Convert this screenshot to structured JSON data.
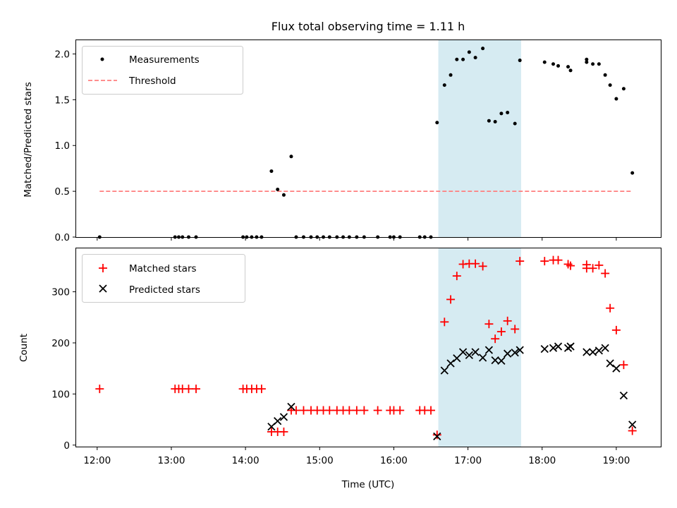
{
  "chart_data": [
    {
      "type": "scatter",
      "title": "Flux total observing time = 1.11 h",
      "xlabel": "",
      "ylabel": "Matched/Predicted stars",
      "xlim": [
        "11:43",
        "19:36"
      ],
      "ylim": [
        0,
        2.15
      ],
      "yticks": [
        "0.0",
        "0.5",
        "1.0",
        "1.5",
        "2.0"
      ],
      "xticks": [
        "12:00",
        "13:00",
        "14:00",
        "15:00",
        "16:00",
        "17:00",
        "18:00",
        "19:00"
      ],
      "xtick_labels_shown": false,
      "shaded_region": {
        "x": [
          "16:36",
          "17:43"
        ],
        "color": "#add8e6"
      },
      "legend": {
        "location": "upper-left",
        "entries": [
          "Measurements",
          "Threshold"
        ]
      },
      "grid": false,
      "series": [
        {
          "name": "Measurements",
          "color": "#000000",
          "marker": "dot",
          "points": [
            [
              "12:02",
              0
            ],
            [
              "13:03",
              0
            ],
            [
              "13:06",
              0
            ],
            [
              "13:09",
              0
            ],
            [
              "13:14",
              0
            ],
            [
              "13:20",
              0
            ],
            [
              "13:58",
              0
            ],
            [
              "14:01",
              0
            ],
            [
              "14:05",
              0
            ],
            [
              "14:09",
              0
            ],
            [
              "14:13",
              0
            ],
            [
              "14:21",
              0.72
            ],
            [
              "14:26",
              0.52
            ],
            [
              "14:31",
              0.46
            ],
            [
              "14:37",
              0.88
            ],
            [
              "14:41",
              0
            ],
            [
              "14:47",
              0
            ],
            [
              "14:53",
              0
            ],
            [
              "14:58",
              0
            ],
            [
              "15:03",
              0
            ],
            [
              "15:08",
              0
            ],
            [
              "15:14",
              0
            ],
            [
              "15:19",
              0
            ],
            [
              "15:24",
              0
            ],
            [
              "15:30",
              0
            ],
            [
              "15:36",
              0
            ],
            [
              "15:47",
              0
            ],
            [
              "15:57",
              0
            ],
            [
              "16:00",
              0
            ],
            [
              "16:05",
              0
            ],
            [
              "16:21",
              0
            ],
            [
              "16:25",
              0
            ],
            [
              "16:30",
              0
            ],
            [
              "16:35",
              1.25
            ],
            [
              "16:41",
              1.66
            ],
            [
              "16:46",
              1.77
            ],
            [
              "16:51",
              1.94
            ],
            [
              "16:56",
              1.94
            ],
            [
              "17:01",
              2.02
            ],
            [
              "17:06",
              1.96
            ],
            [
              "17:12",
              2.06
            ],
            [
              "17:17",
              1.27
            ],
            [
              "17:22",
              1.26
            ],
            [
              "17:27",
              1.35
            ],
            [
              "17:32",
              1.36
            ],
            [
              "17:38",
              1.24
            ],
            [
              "17:42",
              1.93
            ],
            [
              "18:02",
              1.91
            ],
            [
              "18:09",
              1.89
            ],
            [
              "18:13",
              1.87
            ],
            [
              "18:21",
              1.86
            ],
            [
              "18:23",
              1.82
            ],
            [
              "18:36",
              1.94
            ],
            [
              "18:36",
              1.91
            ],
            [
              "18:41",
              1.89
            ],
            [
              "18:46",
              1.89
            ],
            [
              "18:51",
              1.77
            ],
            [
              "18:55",
              1.66
            ],
            [
              "19:00",
              1.51
            ],
            [
              "19:06",
              1.62
            ],
            [
              "19:13",
              0.7
            ]
          ]
        },
        {
          "name": "Threshold",
          "color": "#ff7f7f",
          "style": "dashed",
          "points": [
            [
              "12:02",
              0.5
            ],
            [
              "19:12",
              0.5
            ]
          ]
        }
      ]
    },
    {
      "type": "scatter",
      "title": "",
      "xlabel": "Time (UTC)",
      "ylabel": "Count",
      "xlim": [
        "11:43",
        "19:36"
      ],
      "ylim": [
        -3,
        385
      ],
      "yticks": [
        "0",
        "100",
        "200",
        "300"
      ],
      "xticks": [
        "12:00",
        "13:00",
        "14:00",
        "15:00",
        "16:00",
        "17:00",
        "18:00",
        "19:00"
      ],
      "shaded_region": {
        "x": [
          "16:36",
          "17:43"
        ],
        "color": "#add8e6"
      },
      "legend": {
        "location": "upper-left",
        "entries": [
          "Matched stars",
          "Predicted stars"
        ]
      },
      "grid": false,
      "series": [
        {
          "name": "Matched stars",
          "color": "#ff0000",
          "marker": "plus",
          "points": [
            [
              "12:02",
              110
            ],
            [
              "13:03",
              110
            ],
            [
              "13:06",
              110
            ],
            [
              "13:09",
              110
            ],
            [
              "13:14",
              110
            ],
            [
              "13:20",
              110
            ],
            [
              "13:58",
              110
            ],
            [
              "14:01",
              110
            ],
            [
              "14:05",
              110
            ],
            [
              "14:09",
              110
            ],
            [
              "14:13",
              110
            ],
            [
              "14:21",
              26
            ],
            [
              "14:26",
              26
            ],
            [
              "14:31",
              26
            ],
            [
              "14:37",
              68
            ],
            [
              "14:41",
              68
            ],
            [
              "14:47",
              68
            ],
            [
              "14:53",
              68
            ],
            [
              "14:58",
              68
            ],
            [
              "15:03",
              68
            ],
            [
              "15:08",
              68
            ],
            [
              "15:14",
              68
            ],
            [
              "15:19",
              68
            ],
            [
              "15:24",
              68
            ],
            [
              "15:30",
              68
            ],
            [
              "15:36",
              68
            ],
            [
              "15:47",
              68
            ],
            [
              "15:57",
              68
            ],
            [
              "16:00",
              68
            ],
            [
              "16:05",
              68
            ],
            [
              "16:21",
              68
            ],
            [
              "16:25",
              68
            ],
            [
              "16:30",
              68
            ],
            [
              "16:35",
              20
            ],
            [
              "16:41",
              241
            ],
            [
              "16:46",
              285
            ],
            [
              "16:51",
              331
            ],
            [
              "16:56",
              354
            ],
            [
              "17:01",
              355
            ],
            [
              "17:06",
              355
            ],
            [
              "17:12",
              350
            ],
            [
              "17:17",
              237
            ],
            [
              "17:22",
              208
            ],
            [
              "17:27",
              222
            ],
            [
              "17:32",
              243
            ],
            [
              "17:38",
              227
            ],
            [
              "17:42",
              360
            ],
            [
              "18:02",
              360
            ],
            [
              "18:09",
              362
            ],
            [
              "18:13",
              362
            ],
            [
              "18:21",
              354
            ],
            [
              "18:23",
              351
            ],
            [
              "18:36",
              353
            ],
            [
              "18:36",
              346
            ],
            [
              "18:41",
              346
            ],
            [
              "18:46",
              352
            ],
            [
              "18:51",
              336
            ],
            [
              "18:55",
              268
            ],
            [
              "19:00",
              225
            ],
            [
              "19:06",
              157
            ],
            [
              "19:13",
              28
            ]
          ]
        },
        {
          "name": "Predicted stars",
          "color": "#000000",
          "marker": "x",
          "points": [
            [
              "14:21",
              36
            ],
            [
              "14:26",
              47
            ],
            [
              "14:31",
              55
            ],
            [
              "14:37",
              75
            ],
            [
              "16:35",
              17
            ],
            [
              "16:41",
              146
            ],
            [
              "16:46",
              160
            ],
            [
              "16:51",
              170
            ],
            [
              "16:56",
              182
            ],
            [
              "17:01",
              176
            ],
            [
              "17:06",
              182
            ],
            [
              "17:12",
              171
            ],
            [
              "17:17",
              186
            ],
            [
              "17:22",
              166
            ],
            [
              "17:27",
              165
            ],
            [
              "17:32",
              179
            ],
            [
              "17:38",
              181
            ],
            [
              "17:42",
              186
            ],
            [
              "18:02",
              188
            ],
            [
              "18:09",
              190
            ],
            [
              "18:13",
              193
            ],
            [
              "18:21",
              190
            ],
            [
              "18:23",
              193
            ],
            [
              "18:36",
              182
            ],
            [
              "18:41",
              182
            ],
            [
              "18:46",
              185
            ],
            [
              "18:51",
              190
            ],
            [
              "18:55",
              160
            ],
            [
              "19:00",
              150
            ],
            [
              "19:06",
              97
            ],
            [
              "19:13",
              40
            ]
          ]
        }
      ]
    }
  ]
}
